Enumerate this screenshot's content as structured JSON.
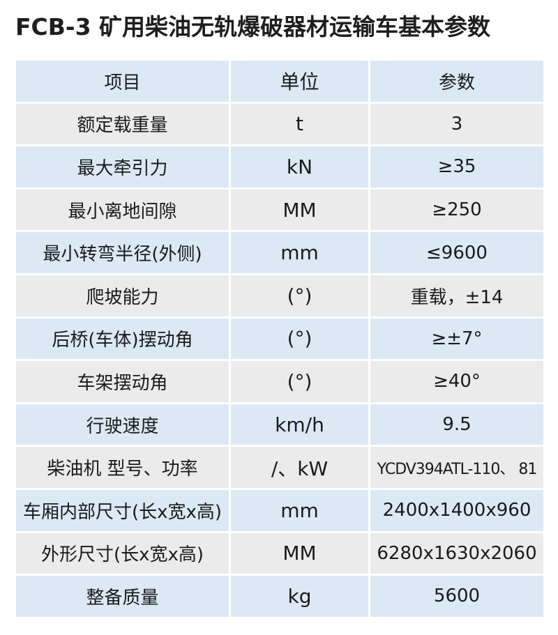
{
  "title": "FCB-3 矿用柴油无轨爆破器材运输车基本参数",
  "colors": {
    "row_blue": "#dce9f5",
    "row_gray": "#ebebeb"
  },
  "header": {
    "item": "项目",
    "unit": "单位",
    "value": "参数"
  },
  "rows": [
    {
      "item": "额定载重量",
      "unit": "t",
      "value": "3"
    },
    {
      "item": "最大牵引力",
      "unit": "kN",
      "value": "≥35"
    },
    {
      "item": "最小离地间隙",
      "unit": "MM",
      "value": "≥250"
    },
    {
      "item": "最小转弯半径(外侧)",
      "unit": "mm",
      "value": "≤9600"
    },
    {
      "item": "爬坡能力",
      "unit": "(°)",
      "value": "重载，±14"
    },
    {
      "item": "后桥(车体)摆动角",
      "unit": "(°)",
      "value": "≥±7°"
    },
    {
      "item": "车架摆动角",
      "unit": "(°)",
      "value": "≥40°"
    },
    {
      "item": "行驶速度",
      "unit": "km/h",
      "value": "9.5"
    },
    {
      "item": "柴油机 型号、功率",
      "unit": "/、kW",
      "value": "YCDV394ATL-110、 81"
    },
    {
      "item": "车厢内部尺寸(长x宽x高)",
      "unit": "mm",
      "value": "2400x1400x960"
    },
    {
      "item": "外形尺寸(长x宽x高)",
      "unit": "MM",
      "value": "6280x1630x2060"
    },
    {
      "item": "整备质量",
      "unit": "kg",
      "value": "5600"
    }
  ]
}
